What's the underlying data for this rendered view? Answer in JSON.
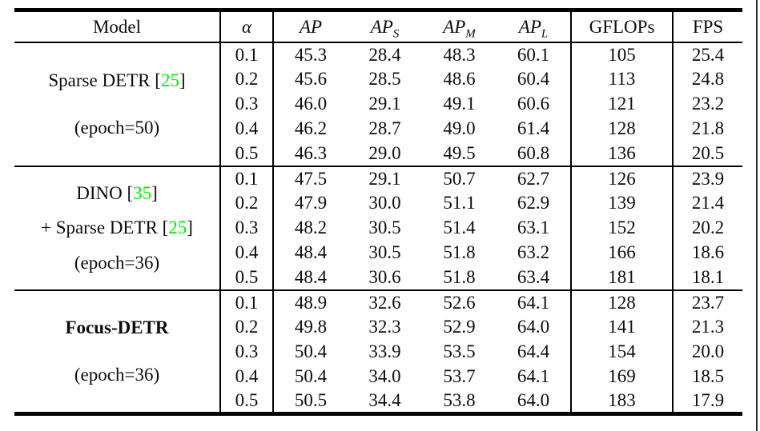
{
  "page": {
    "background": "#ffffff",
    "edge_line_color": "#2e2e2e"
  },
  "table": {
    "rule_color": "#000000",
    "text_color": "#0d0d0d",
    "citation_color": "#00ee00",
    "cite_open": "[",
    "cite_close": "]",
    "header": {
      "model": "Model",
      "alpha": "α",
      "ap": {
        "base": "AP",
        "sub": ""
      },
      "ap_s": {
        "base": "AP",
        "sub": "S"
      },
      "ap_m": {
        "base": "AP",
        "sub": "M"
      },
      "ap_l": {
        "base": "AP",
        "sub": "L"
      },
      "gflops": "GFLOPs",
      "fps": "FPS"
    },
    "groups": [
      {
        "model_lines": [
          {
            "text": "Sparse DETR",
            "cite": "25",
            "bold": false
          }
        ],
        "epoch": "(epoch=50)",
        "rows": [
          {
            "alpha": "0.1",
            "ap": "45.3",
            "ap_s": "28.4",
            "ap_m": "48.3",
            "ap_l": "60.1",
            "gflops": "105",
            "fps": "25.4"
          },
          {
            "alpha": "0.2",
            "ap": "45.6",
            "ap_s": "28.5",
            "ap_m": "48.6",
            "ap_l": "60.4",
            "gflops": "113",
            "fps": "24.8"
          },
          {
            "alpha": "0.3",
            "ap": "46.0",
            "ap_s": "29.1",
            "ap_m": "49.1",
            "ap_l": "60.6",
            "gflops": "121",
            "fps": "23.2"
          },
          {
            "alpha": "0.4",
            "ap": "46.2",
            "ap_s": "28.7",
            "ap_m": "49.0",
            "ap_l": "61.4",
            "gflops": "128",
            "fps": "21.8"
          },
          {
            "alpha": "0.5",
            "ap": "46.3",
            "ap_s": "29.0",
            "ap_m": "49.5",
            "ap_l": "60.8",
            "gflops": "136",
            "fps": "20.5"
          }
        ]
      },
      {
        "model_lines": [
          {
            "text": "DINO",
            "cite": "35",
            "bold": false
          },
          {
            "text": "+ Sparse DETR",
            "cite": "25",
            "bold": false
          }
        ],
        "epoch": "(epoch=36)",
        "rows": [
          {
            "alpha": "0.1",
            "ap": "47.5",
            "ap_s": "29.1",
            "ap_m": "50.7",
            "ap_l": "62.7",
            "gflops": "126",
            "fps": "23.9"
          },
          {
            "alpha": "0.2",
            "ap": "47.9",
            "ap_s": "30.0",
            "ap_m": "51.1",
            "ap_l": "62.9",
            "gflops": "139",
            "fps": "21.4"
          },
          {
            "alpha": "0.3",
            "ap": "48.2",
            "ap_s": "30.5",
            "ap_m": "51.4",
            "ap_l": "63.1",
            "gflops": "152",
            "fps": "20.2"
          },
          {
            "alpha": "0.4",
            "ap": "48.4",
            "ap_s": "30.5",
            "ap_m": "51.8",
            "ap_l": "63.2",
            "gflops": "166",
            "fps": "18.6"
          },
          {
            "alpha": "0.5",
            "ap": "48.4",
            "ap_s": "30.6",
            "ap_m": "51.8",
            "ap_l": "63.4",
            "gflops": "181",
            "fps": "18.1"
          }
        ]
      },
      {
        "model_lines": [
          {
            "text": "Focus-DETR",
            "bold": true
          }
        ],
        "epoch": "(epoch=36)",
        "rows": [
          {
            "alpha": "0.1",
            "ap": "48.9",
            "ap_s": "32.6",
            "ap_m": "52.6",
            "ap_l": "64.1",
            "gflops": "128",
            "fps": "23.7"
          },
          {
            "alpha": "0.2",
            "ap": "49.8",
            "ap_s": "32.3",
            "ap_m": "52.9",
            "ap_l": "64.0",
            "gflops": "141",
            "fps": "21.3"
          },
          {
            "alpha": "0.3",
            "ap": "50.4",
            "ap_s": "33.9",
            "ap_m": "53.5",
            "ap_l": "64.4",
            "gflops": "154",
            "fps": "20.0"
          },
          {
            "alpha": "0.4",
            "ap": "50.4",
            "ap_s": "34.0",
            "ap_m": "53.7",
            "ap_l": "64.1",
            "gflops": "169",
            "fps": "18.5"
          },
          {
            "alpha": "0.5",
            "ap": "50.5",
            "ap_s": "34.4",
            "ap_m": "53.8",
            "ap_l": "64.0",
            "gflops": "183",
            "fps": "17.9"
          }
        ]
      }
    ]
  }
}
